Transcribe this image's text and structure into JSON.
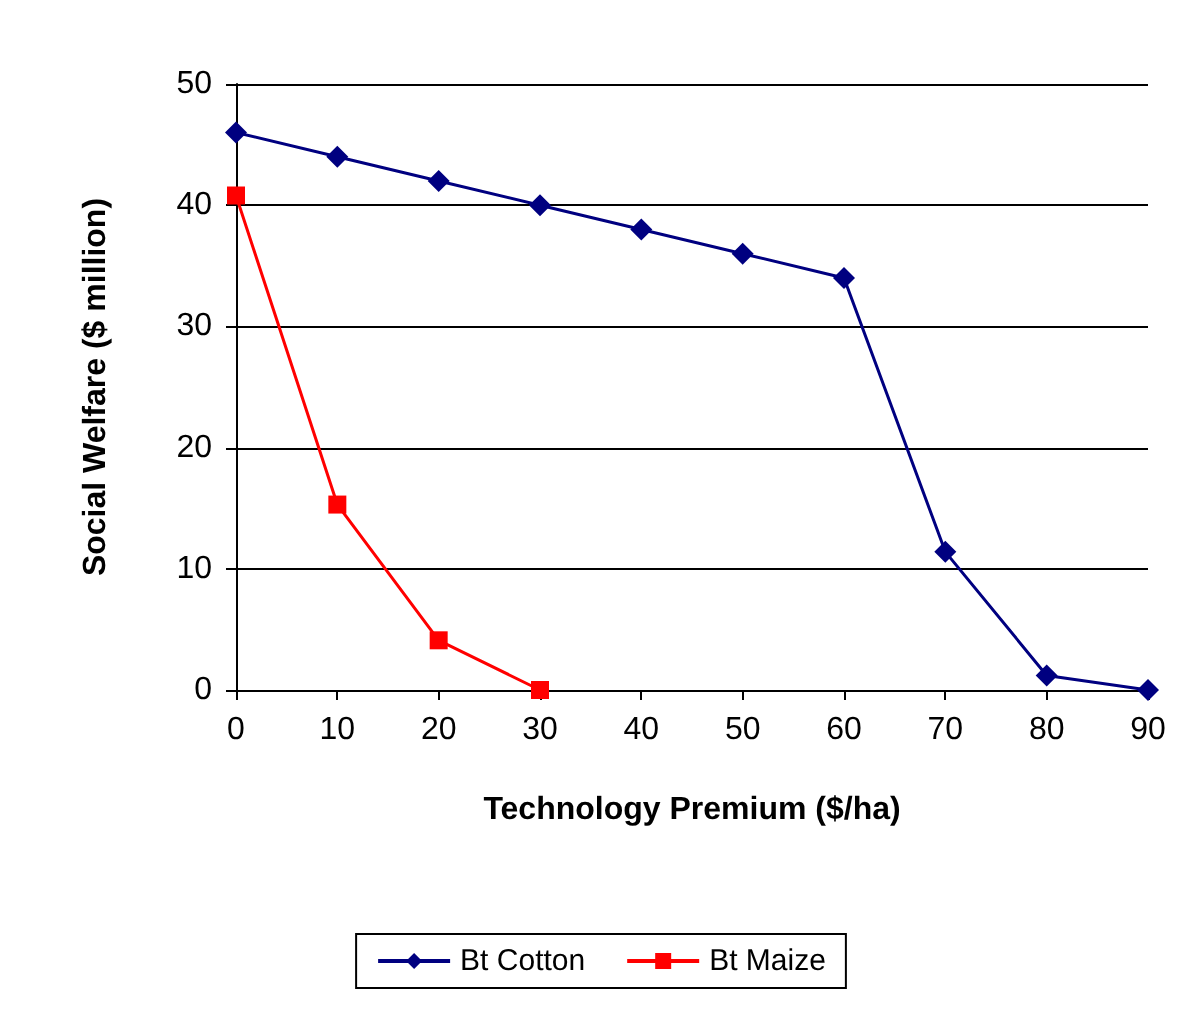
{
  "chart_data": {
    "type": "line",
    "xlabel": "Technology Premium ($/ha)",
    "ylabel": "Social Welfare ($ million)",
    "xlim": [
      0,
      90
    ],
    "xticks": [
      0,
      10,
      20,
      30,
      40,
      50,
      60,
      70,
      80,
      90
    ],
    "ylim": [
      0,
      50
    ],
    "yticks": [
      0,
      10,
      20,
      30,
      40,
      50
    ],
    "grid": "y",
    "legend": "bottom",
    "series": [
      {
        "name": "Bt Cotton",
        "color": "#000080",
        "marker": "diamond",
        "x": [
          0,
          10,
          20,
          30,
          40,
          50,
          60,
          70,
          80,
          90
        ],
        "values": [
          46,
          44,
          42,
          40,
          38,
          36,
          34,
          11.4,
          1.2,
          0
        ]
      },
      {
        "name": "Bt Maize",
        "color": "#ff0000",
        "marker": "square",
        "x": [
          0,
          10,
          20,
          30
        ],
        "values": [
          40.8,
          15.3,
          4.1,
          0
        ]
      }
    ]
  }
}
